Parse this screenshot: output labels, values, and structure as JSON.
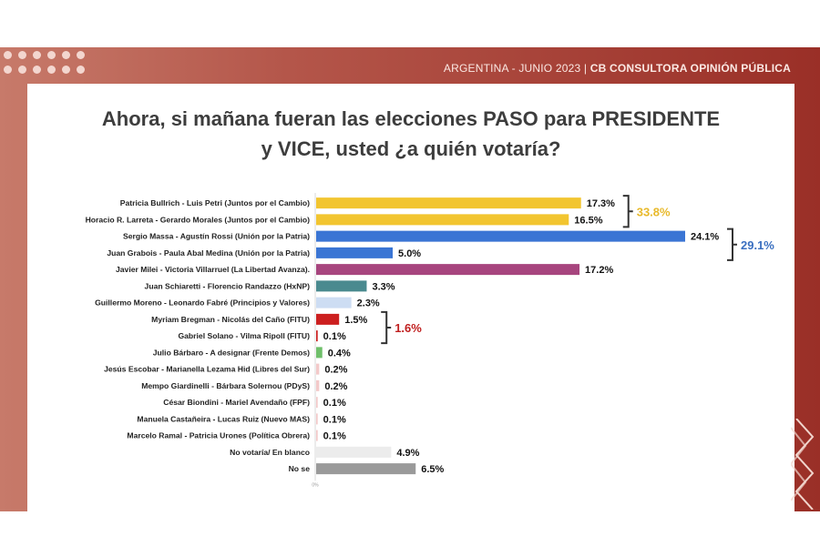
{
  "header": {
    "left": "ARGENTINA  - JUNIO 2023 |",
    "right": "CB CONSULTORA OPINIÓN PÚBLICA"
  },
  "colors": {
    "yellow": "#f2c530",
    "blue": "#3a75d4",
    "purple": "#a7457e",
    "teal": "#4a8a8f",
    "lightblue": "#cdddf3",
    "red": "#cc1f1f",
    "green": "#6fbf6a",
    "lightpink": "#f3c9c9",
    "lightgray": "#ececec",
    "gray": "#9a9a9a"
  },
  "chart_data": {
    "type": "bar",
    "orientation": "horizontal",
    "title": "Ahora, si mañana fueran las elecciones PASO para PRESIDENTE y VICE, usted ¿a quién votaría?",
    "title_lines": [
      "Ahora, si mañana fueran las elecciones PASO para PRESIDENTE",
      "y VICE, usted ¿a quién votaría?"
    ],
    "categories": [
      "Patricia Bullrich - Luis Petri (Juntos por el Cambio)",
      "Horacio R. Larreta - Gerardo Morales (Juntos por el Cambio)",
      "Sergio Massa - Agustín Rossi (Unión por la Patria)",
      "Juan Grabois - Paula Abal Medina (Unión por la Patria)",
      "Javier Milei - Victoria Villarruel (La Libertad Avanza).",
      "Juan Schiaretti - Florencio Randazzo (HxNP)",
      "Guillermo Moreno - Leonardo Fabré (Principios y Valores)",
      "Myriam Bregman - Nicolás del Caño (FITU)",
      "Gabriel Solano - Vilma Ripoll (FITU)",
      "Julio Bárbaro - A designar (Frente Demos)",
      "Jesús Escobar - Marianella Lezama Hid (Libres del Sur)",
      "Mempo Giardinelli - Bárbara Solernou (PDyS)",
      "César Biondini - Mariel Avendaño (FPF)",
      "Manuela Castañeira - Lucas Ruiz (Nuevo MAS)",
      "Marcelo Ramal - Patricia Urones (Política Obrera)",
      "No votaría/ En blanco",
      "No se"
    ],
    "values": [
      17.3,
      16.5,
      24.1,
      5.0,
      17.2,
      3.3,
      2.3,
      1.5,
      0.1,
      0.4,
      0.2,
      0.2,
      0.1,
      0.1,
      0.1,
      4.9,
      6.5
    ],
    "value_labels": [
      "17.3%",
      "16.5%",
      "24.1%",
      "5.0%",
      "17.2%",
      "3.3%",
      "2.3%",
      "1.5%",
      "0.1%",
      "0.4%",
      "0.2%",
      "0.2%",
      "0.1%",
      "0.1%",
      "0.1%",
      "4.9%",
      "6.5%"
    ],
    "bar_colors": [
      "yellow",
      "yellow",
      "blue",
      "blue",
      "purple",
      "teal",
      "lightblue",
      "red",
      "red",
      "green",
      "lightpink",
      "lightpink",
      "lightpink",
      "lightpink",
      "lightpink",
      "lightgray",
      "gray"
    ],
    "groups": [
      {
        "from": 0,
        "to": 1,
        "label": "33.8%",
        "color": "#e8b92a"
      },
      {
        "from": 2,
        "to": 3,
        "label": "29.1%",
        "color": "#3a6fc0"
      },
      {
        "from": 7,
        "to": 8,
        "label": "1.6%",
        "color": "#c02020"
      }
    ],
    "axis_tick": "0%",
    "xlim": [
      0,
      24.1
    ]
  }
}
